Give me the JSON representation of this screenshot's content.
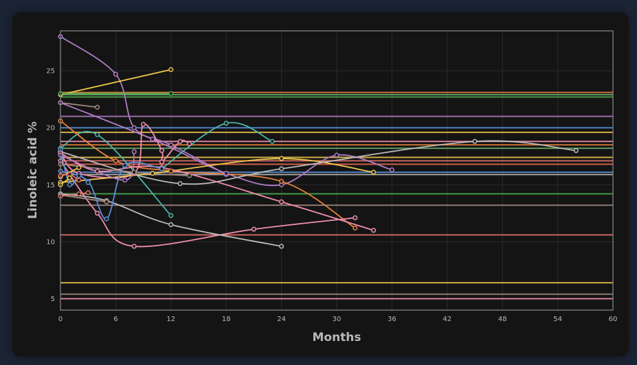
{
  "chart_data": {
    "type": "line",
    "title": "",
    "xlabel": "Months",
    "ylabel": "Linoleic acid %",
    "xlim": [
      0,
      60
    ],
    "ylim": [
      4,
      28.5
    ],
    "xticks": [
      0,
      6,
      12,
      18,
      24,
      30,
      36,
      42,
      48,
      54,
      60
    ],
    "yticks": [
      5,
      10,
      15,
      20,
      25
    ],
    "grid": true,
    "legend": "none",
    "background": "#141414",
    "horizontal_reference_lines": [
      {
        "y": 23.1,
        "color": "#e8833a"
      },
      {
        "y": 22.9,
        "color": "#6db36d"
      },
      {
        "y": 22.7,
        "color": "#4caf50"
      },
      {
        "y": 21.0,
        "color": "#b07cc6"
      },
      {
        "y": 20.0,
        "color": "#5a8fd8"
      },
      {
        "y": 19.6,
        "color": "#f2c94c"
      },
      {
        "y": 18.8,
        "color": "#f48fb1"
      },
      {
        "y": 18.5,
        "color": "#e8833a"
      },
      {
        "y": 18.2,
        "color": "#6db36d"
      },
      {
        "y": 17.4,
        "color": "#f2c94c"
      },
      {
        "y": 17.1,
        "color": "#e57373"
      },
      {
        "y": 16.8,
        "color": "#ef6c52"
      },
      {
        "y": 16.1,
        "color": "#5a8fd8"
      },
      {
        "y": 15.9,
        "color": "#bdbdbd"
      },
      {
        "y": 14.2,
        "color": "#4caf50"
      },
      {
        "y": 13.2,
        "color": "#a1887f"
      },
      {
        "y": 10.6,
        "color": "#e57373"
      },
      {
        "y": 6.4,
        "color": "#f2c94c"
      },
      {
        "y": 5.4,
        "color": "#a1887f"
      },
      {
        "y": 5.0,
        "color": "#f48fb1"
      }
    ],
    "series": [
      {
        "color": "#b07cc6",
        "x": [
          0,
          6,
          8,
          12,
          18
        ],
        "y": [
          28.0,
          24.7,
          20.0,
          18.5,
          15.9
        ]
      },
      {
        "color": "#f2c94c",
        "x": [
          0,
          12
        ],
        "y": [
          22.9,
          25.1
        ]
      },
      {
        "color": "#4caf50",
        "x": [
          0,
          12
        ],
        "y": [
          23.0,
          23.0
        ]
      },
      {
        "color": "#a1887f",
        "x": [
          0,
          4
        ],
        "y": [
          22.2,
          21.8
        ]
      },
      {
        "color": "#b07cc6",
        "x": [
          0,
          10,
          18,
          24,
          30,
          36
        ],
        "y": [
          22.2,
          19.0,
          16.0,
          15.0,
          17.6,
          16.3
        ]
      },
      {
        "color": "#4db6ac",
        "x": [
          0,
          4,
          12
        ],
        "y": [
          18.2,
          19.4,
          12.3
        ]
      },
      {
        "color": "#4db6ac",
        "x": [
          11,
          18,
          23
        ],
        "y": [
          16.4,
          20.4,
          18.8
        ]
      },
      {
        "color": "#f48fb1",
        "x": [
          0,
          2,
          8,
          9,
          11,
          11,
          13,
          14
        ],
        "y": [
          17.8,
          16.0,
          16.0,
          20.3,
          18.0,
          17.0,
          18.8,
          18.6
        ]
      },
      {
        "color": "#e8833a",
        "x": [
          0,
          6,
          12,
          24,
          32
        ],
        "y": [
          20.6,
          17.1,
          16.2,
          15.3,
          11.2
        ]
      },
      {
        "color": "#f2c94c",
        "x": [
          0,
          10,
          24,
          34
        ],
        "y": [
          15.2,
          16.0,
          17.3,
          16.1
        ]
      },
      {
        "color": "#bdbdbd",
        "x": [
          0,
          13,
          24,
          45,
          56
        ],
        "y": [
          17.9,
          15.1,
          16.4,
          18.8,
          18.0
        ]
      },
      {
        "color": "#f48fb1",
        "x": [
          0,
          4,
          8,
          21,
          32
        ],
        "y": [
          17.1,
          12.5,
          9.6,
          11.1,
          12.1
        ]
      },
      {
        "color": "#f48fb1",
        "x": [
          0,
          4,
          11,
          24,
          34
        ],
        "y": [
          17.8,
          16.2,
          16.5,
          13.5,
          11.0
        ]
      },
      {
        "color": "#bdbdbd",
        "x": [
          0,
          5,
          12,
          24
        ],
        "y": [
          14.2,
          13.6,
          11.5,
          9.6
        ]
      },
      {
        "color": "#a1887f",
        "x": [
          0,
          5
        ],
        "y": [
          14.1,
          13.5
        ]
      },
      {
        "color": "#5a8fd8",
        "x": [
          0,
          3,
          5,
          7,
          11
        ],
        "y": [
          16.2,
          15.3,
          12.0,
          16.7,
          16.4
        ]
      },
      {
        "color": "#e57373",
        "x": [
          0,
          2,
          3
        ],
        "y": [
          14.0,
          14.2,
          14.3
        ]
      },
      {
        "color": "#5a8fd8",
        "x": [
          0,
          1,
          2,
          3
        ],
        "y": [
          18.1,
          15.0,
          15.8,
          15.2
        ]
      },
      {
        "color": "#f2c94c",
        "x": [
          0,
          2
        ],
        "y": [
          15.7,
          16.5
        ]
      },
      {
        "color": "#b07cc6",
        "x": [
          0,
          7,
          8
        ],
        "y": [
          17.6,
          15.4,
          17.9
        ]
      },
      {
        "color": "#ef6c52",
        "x": [
          0,
          1,
          2
        ],
        "y": [
          15.8,
          15.9,
          15.4
        ]
      },
      {
        "color": "#f2c94c",
        "x": [
          0,
          1
        ],
        "y": [
          15.0,
          15.6
        ]
      },
      {
        "color": "#a1887f",
        "x": [
          0,
          8,
          14
        ],
        "y": [
          16.8,
          16.1,
          15.8
        ]
      }
    ]
  }
}
